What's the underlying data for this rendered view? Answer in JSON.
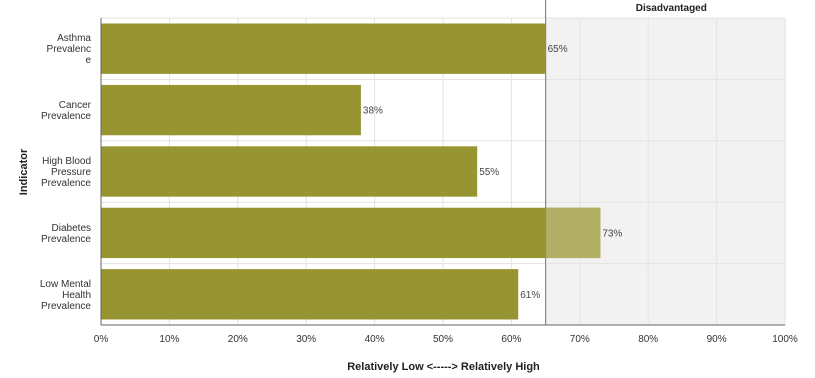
{
  "chart_data": {
    "type": "bar",
    "orientation": "horizontal",
    "categories": [
      [
        "Asthma",
        "Prevalenc",
        "e"
      ],
      [
        "Cancer",
        "Prevalence"
      ],
      [
        "High Blood",
        "Pressure",
        "Prevalence"
      ],
      [
        "Diabetes",
        "Prevalence"
      ],
      [
        "Low Mental",
        "Health",
        "Prevalence"
      ]
    ],
    "values": [
      65,
      38,
      55,
      73,
      61
    ],
    "value_labels": [
      "65%",
      "38%",
      "55%",
      "73%",
      "61%"
    ],
    "xlabel": "Relatively Low <-----> Relatively High",
    "ylabel": "Indicator",
    "xlim": [
      0,
      100
    ],
    "xticks": [
      0,
      10,
      20,
      30,
      40,
      50,
      60,
      70,
      80,
      90,
      100
    ],
    "xtick_labels": [
      "0%",
      "10%",
      "20%",
      "30%",
      "40%",
      "50%",
      "60%",
      "70%",
      "80%",
      "90%",
      "100%"
    ],
    "threshold": {
      "value": 65,
      "label": "Disadvantaged"
    },
    "grid": true,
    "colors": {
      "bar": "#979532",
      "bar_over_threshold": "#b2b064",
      "band": "#f2f2f2",
      "threshold_line": "#888888",
      "grid": "#e3e3e3"
    }
  }
}
